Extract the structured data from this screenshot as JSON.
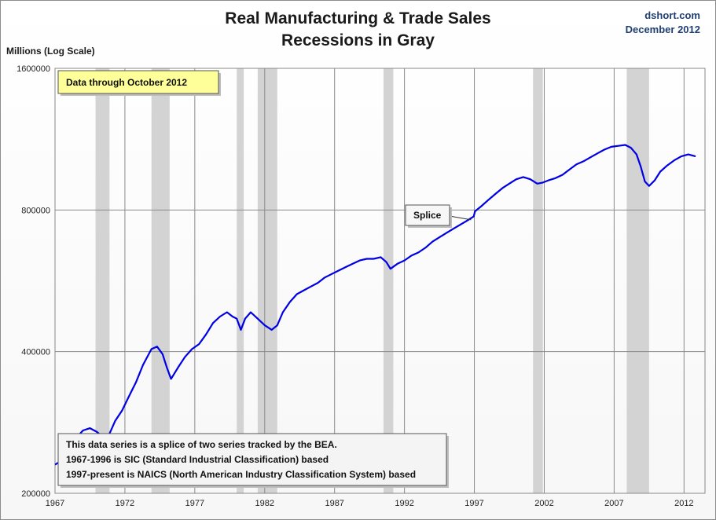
{
  "header": {
    "title_line1": "Real Manufacturing & Trade Sales",
    "title_line2": "Recessions in Gray",
    "credit_line1": "dshort.com",
    "credit_line2": "December 2012"
  },
  "colors": {
    "series": "#0000e6",
    "recession": "#d3d3d3",
    "note_yellow": "#ffff99"
  },
  "chart_data": {
    "type": "line",
    "ylabel": "Millions (Log Scale)",
    "xlabel": "",
    "yscale": "log",
    "ylim": [
      200000,
      1600000
    ],
    "xlim": [
      1967,
      2013.5
    ],
    "grid": true,
    "yticks": [
      200000,
      400000,
      800000,
      1600000
    ],
    "ytick_labels": [
      "200000",
      "400000",
      "800000",
      "1600000"
    ],
    "xticks": [
      1967,
      1972,
      1977,
      1982,
      1987,
      1992,
      1997,
      2002,
      2007,
      2012
    ],
    "xtick_labels": [
      "1967",
      "1972",
      "1977",
      "1982",
      "1987",
      "1992",
      "1997",
      "2002",
      "2007",
      "2012"
    ],
    "recessions": [
      [
        1969.9,
        1970.9
      ],
      [
        1973.9,
        1975.2
      ],
      [
        1980.0,
        1980.5
      ],
      [
        1981.5,
        1982.9
      ],
      [
        1990.5,
        1991.2
      ],
      [
        2001.2,
        2001.9
      ],
      [
        2007.9,
        2009.5
      ]
    ],
    "series": [
      {
        "x": [
          1967.0,
          1967.5,
          1968.0,
          1968.5,
          1969.0,
          1969.5,
          1970.0,
          1970.5,
          1970.9,
          1971.3,
          1971.8,
          1972.3,
          1972.8,
          1973.3,
          1973.9,
          1974.3,
          1974.7,
          1975.0,
          1975.3,
          1975.8,
          1976.3,
          1976.8,
          1977.3,
          1977.8,
          1978.3,
          1978.8,
          1979.3,
          1979.7,
          1980.0,
          1980.3,
          1980.6,
          1981.0,
          1981.5,
          1982.0,
          1982.5,
          1982.9,
          1983.3,
          1983.8,
          1984.3,
          1984.8,
          1985.3,
          1985.8,
          1986.3,
          1986.8,
          1987.3,
          1987.8,
          1988.3,
          1988.8,
          1989.3,
          1989.8,
          1990.3,
          1990.7,
          1991.0,
          1991.5,
          1992.0,
          1992.5,
          1993.0,
          1993.5,
          1994.0,
          1994.5,
          1995.0,
          1995.5,
          1996.0,
          1996.5,
          1996.95,
          1997.05,
          1997.5,
          1998.0,
          1998.5,
          1999.0,
          1999.5,
          2000.0,
          2000.5,
          2001.0,
          2001.5,
          2001.9,
          2002.3,
          2002.8,
          2003.3,
          2003.8,
          2004.3,
          2004.8,
          2005.3,
          2005.8,
          2006.3,
          2006.8,
          2007.3,
          2007.8,
          2008.2,
          2008.6,
          2008.9,
          2009.2,
          2009.5,
          2009.9,
          2010.3,
          2010.8,
          2011.3,
          2011.8,
          2012.3,
          2012.83
        ],
        "values": [
          230000,
          235000,
          255000,
          262000,
          272000,
          275000,
          270000,
          262000,
          268000,
          285000,
          300000,
          322000,
          345000,
          375000,
          405000,
          410000,
          395000,
          370000,
          350000,
          370000,
          390000,
          405000,
          415000,
          435000,
          460000,
          475000,
          485000,
          475000,
          470000,
          445000,
          470000,
          485000,
          470000,
          455000,
          445000,
          455000,
          485000,
          510000,
          530000,
          540000,
          550000,
          560000,
          575000,
          585000,
          595000,
          605000,
          615000,
          625000,
          630000,
          630000,
          635000,
          620000,
          600000,
          615000,
          625000,
          640000,
          650000,
          665000,
          685000,
          700000,
          715000,
          730000,
          745000,
          760000,
          775000,
          795000,
          815000,
          840000,
          865000,
          890000,
          910000,
          930000,
          940000,
          930000,
          910000,
          915000,
          925000,
          935000,
          950000,
          975000,
          1000000,
          1015000,
          1035000,
          1055000,
          1075000,
          1090000,
          1095000,
          1100000,
          1085000,
          1050000,
          990000,
          920000,
          900000,
          925000,
          965000,
          995000,
          1020000,
          1040000,
          1050000,
          1040000
        ]
      }
    ],
    "annotations": [
      {
        "label": "Splice",
        "x": 1997.0,
        "y": 780000
      },
      {
        "label": "Data through October 2012"
      },
      {
        "lines": [
          "This data series is a splice of two series tracked by the BEA.",
          "1967-1996  is SIC (Standard Industrial Classification) based",
          "1997-present is NAICS  (North American Industry Classification System) based"
        ]
      }
    ]
  }
}
